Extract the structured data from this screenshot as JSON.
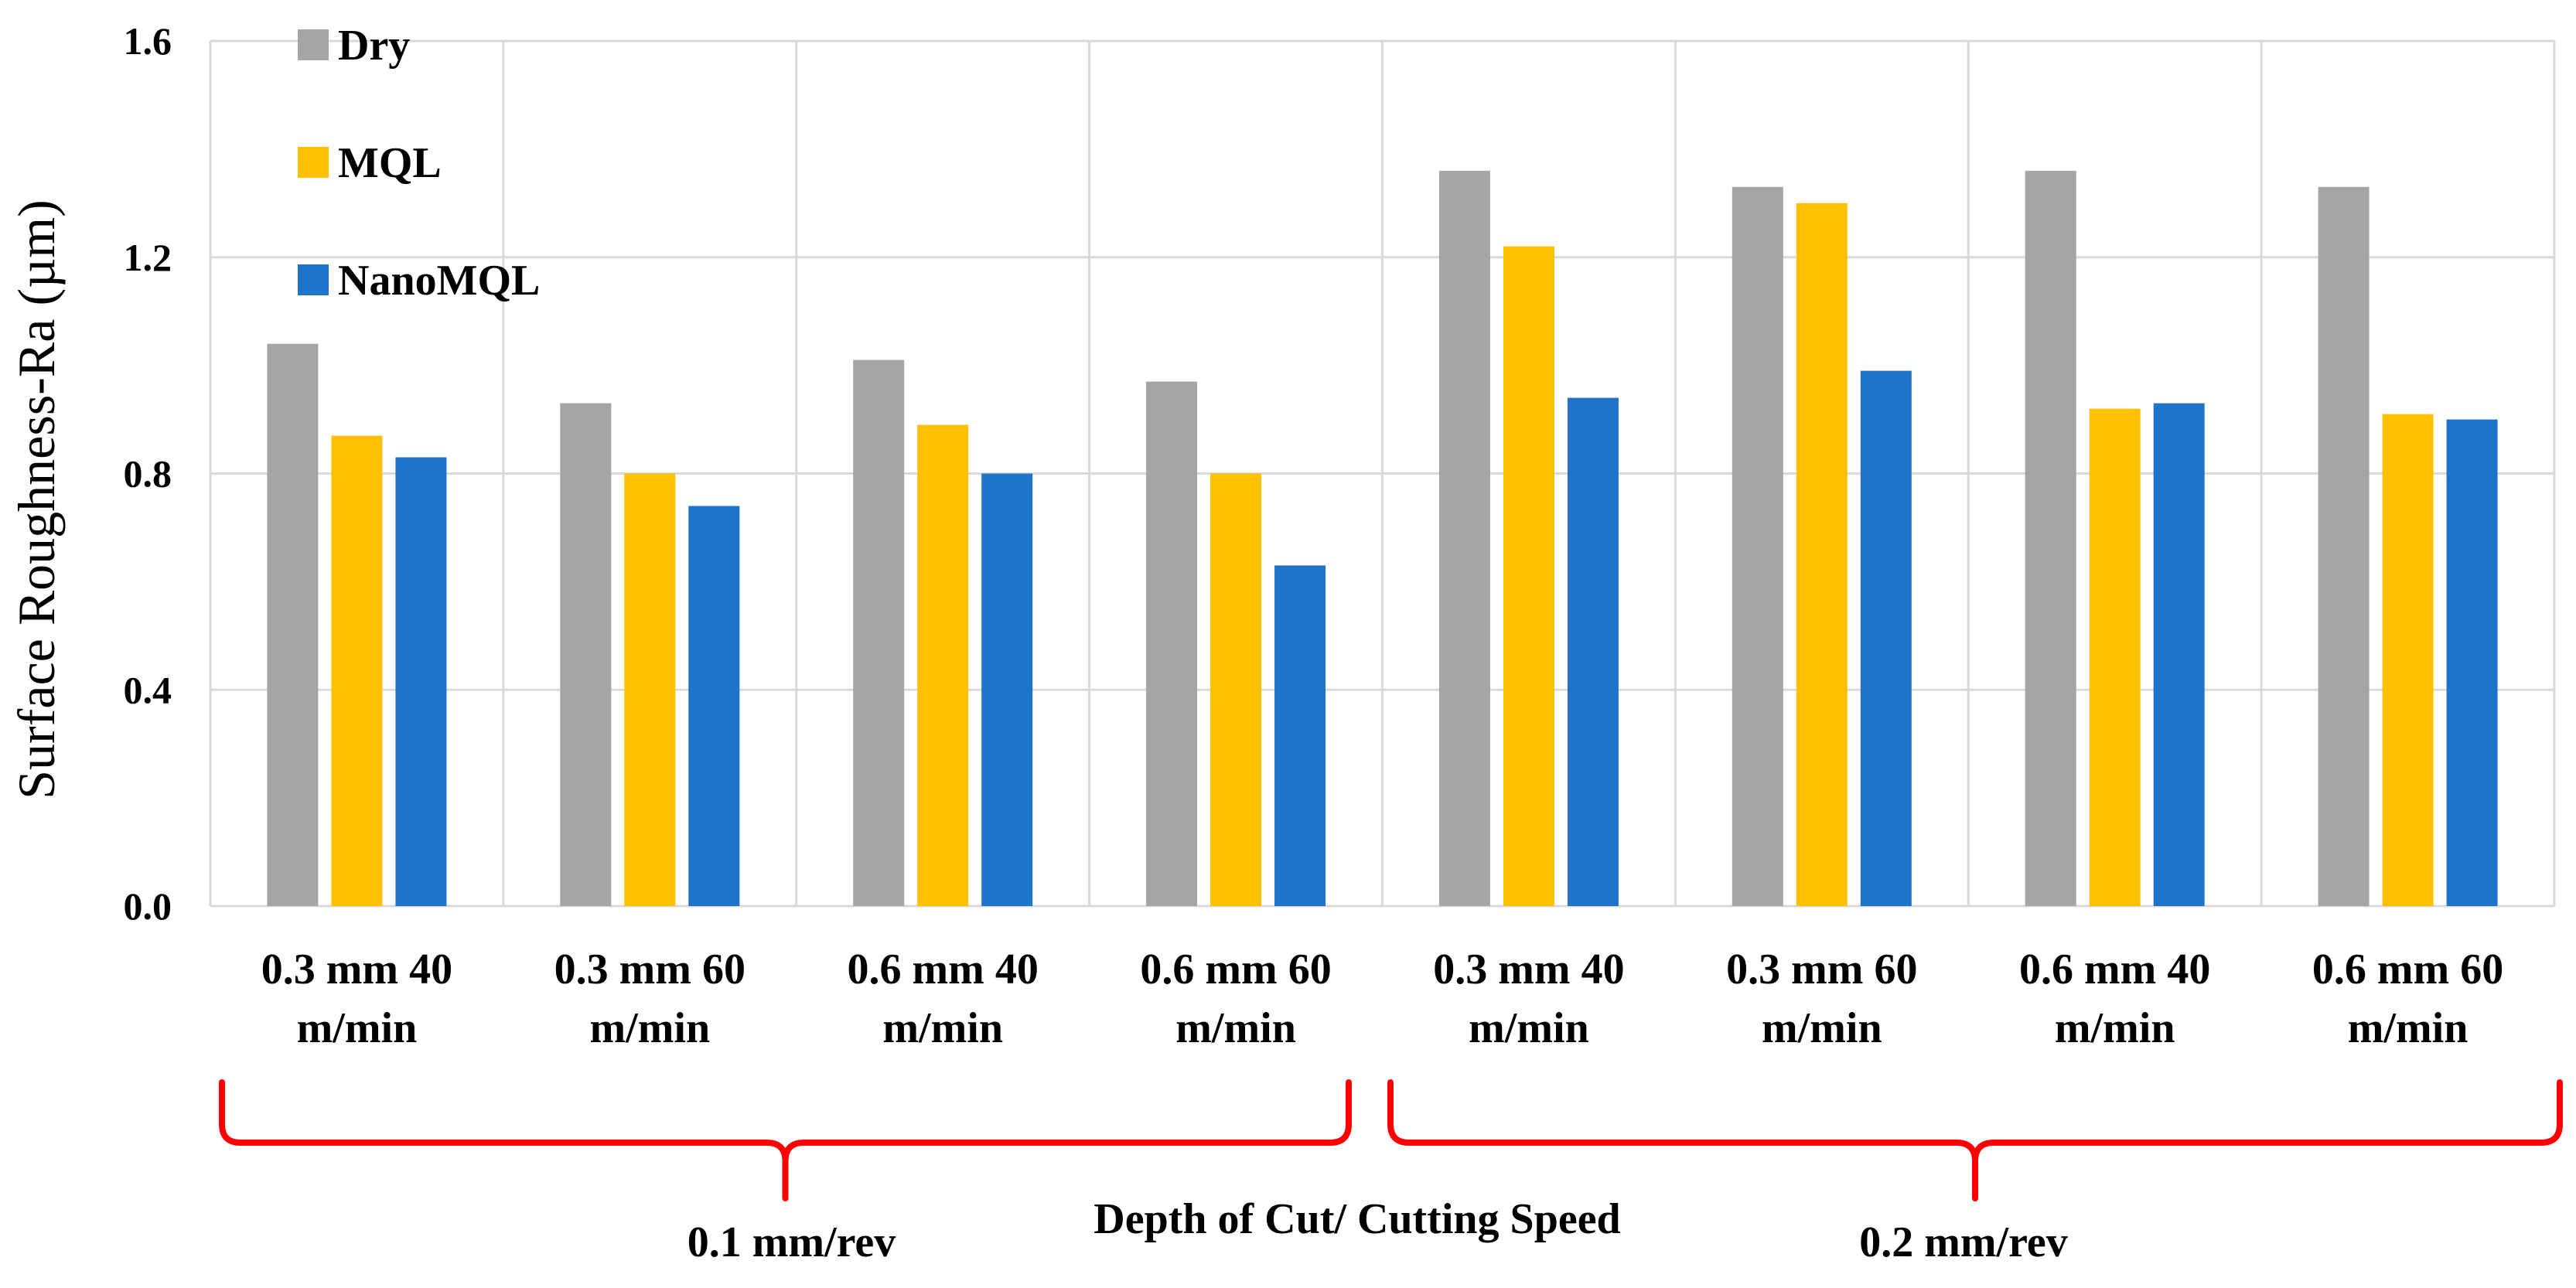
{
  "chart_data": {
    "type": "bar",
    "ylabel": "Surface Roughness-Ra (µm)",
    "xlabel": "Depth of Cut/ Cutting Speed",
    "ylim": [
      0,
      1.6
    ],
    "yticks": [
      "0.0",
      "0.4",
      "0.8",
      "1.2",
      "1.6"
    ],
    "grid": true,
    "legend_position": "top-left",
    "categories": [
      [
        "0.3 mm 40",
        "m/min"
      ],
      [
        "0.3 mm 60",
        "m/min"
      ],
      [
        "0.6 mm 40",
        "m/min"
      ],
      [
        "0.6 mm 60",
        "m/min"
      ],
      [
        "0.3 mm 40",
        "m/min"
      ],
      [
        "0.3 mm 60",
        "m/min"
      ],
      [
        "0.6 mm 40",
        "m/min"
      ],
      [
        "0.6 mm 60",
        "m/min"
      ]
    ],
    "series": [
      {
        "name": "Dry",
        "color": "#a5a5a5",
        "values": [
          1.04,
          0.93,
          1.01,
          0.97,
          1.36,
          1.33,
          1.36,
          1.33
        ]
      },
      {
        "name": "MQL",
        "color": "#ffc000",
        "values": [
          0.87,
          0.8,
          0.89,
          0.8,
          1.22,
          1.3,
          0.92,
          0.91
        ]
      },
      {
        "name": "NanoMQL",
        "color": "#1f73c9",
        "values": [
          0.83,
          0.74,
          0.8,
          0.63,
          0.94,
          0.99,
          0.93,
          0.9
        ]
      }
    ],
    "groups": [
      {
        "label": "0.1 mm/rev",
        "first_category": 0,
        "last_category": 3
      },
      {
        "label": "0.2 mm/rev",
        "first_category": 4,
        "last_category": 7
      }
    ],
    "group_bracket_color": "#ff0000",
    "gridline_color": "#d9d9d9"
  }
}
